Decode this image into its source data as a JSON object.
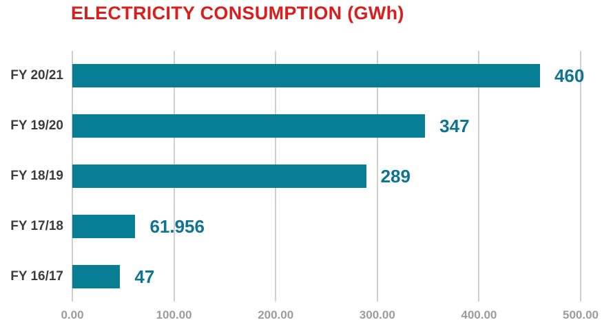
{
  "chart_data": {
    "type": "bar",
    "orientation": "horizontal",
    "title": "ELECTRICITY CONSUMPTION (GWh)",
    "categories": [
      "FY 20/21",
      "FY 19/20",
      "FY 18/19",
      "FY 17/18",
      "FY 16/17"
    ],
    "values": [
      460,
      347,
      289,
      61.956,
      47
    ],
    "value_labels": [
      "460",
      "347",
      "289",
      "61.956",
      "47"
    ],
    "xlabel": "",
    "ylabel": "",
    "xlim": [
      0,
      500
    ],
    "x_tick_values": [
      0,
      100,
      200,
      300,
      400,
      500
    ],
    "x_tick_labels": [
      "0.00",
      "100.00",
      "200.00",
      "300.00",
      "400.00",
      "500.00"
    ],
    "grid": "vertical-only",
    "legend": "none",
    "colors": {
      "bar": "#077e94",
      "value_label": "#0f7490",
      "title": "#da1d1d",
      "category_label": "#3c3c3c",
      "tick_label": "#9c9c9c",
      "gridline": "#cfcfcf",
      "background": "#ffffff"
    }
  }
}
